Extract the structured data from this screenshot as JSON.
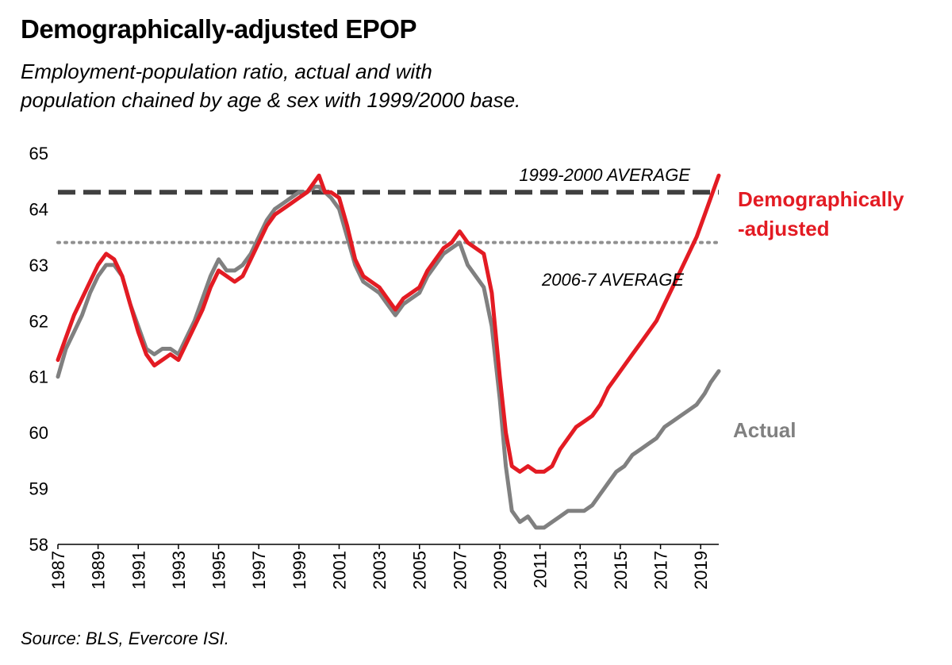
{
  "title": "Demographically-adjusted EPOP",
  "subtitle_lines": [
    "Employment-population ratio, actual and with",
    "population chained by age & sex with 1999/2000  base."
  ],
  "source": "Source: BLS, Evercore ISI.",
  "chart_data": {
    "type": "line",
    "title": "Demographically-adjusted EPOP",
    "xlabel": "",
    "ylabel": "",
    "xlim": [
      1987,
      2019.9
    ],
    "ylim": [
      58,
      65
    ],
    "yticks": [
      58,
      59,
      60,
      61,
      62,
      63,
      64,
      65
    ],
    "xticks": [
      "1987",
      "1989",
      "1991",
      "1993",
      "1995",
      "1997",
      "1999",
      "2001",
      "2003",
      "2005",
      "2007",
      "2009",
      "2011",
      "2013",
      "2015",
      "2017",
      "2019"
    ],
    "grid": false,
    "colors": {
      "adjusted": "#e31b23",
      "actual": "#808080",
      "avg_line": "#404040",
      "dotted_line": "#909090"
    },
    "reference_lines": [
      {
        "label": "1999-2000 AVERAGE",
        "value": 64.3,
        "style": "dashed"
      },
      {
        "label": "2006-7 AVERAGE",
        "value": 63.4,
        "style": "dotted"
      }
    ],
    "series": [
      {
        "name": "Demographically -adjusted",
        "label_lines": [
          "Demographically",
          "-adjusted"
        ],
        "x": [
          1987.0,
          1987.4,
          1987.8,
          1988.2,
          1988.6,
          1989.0,
          1989.4,
          1989.8,
          1990.2,
          1990.6,
          1991.0,
          1991.4,
          1991.8,
          1992.2,
          1992.6,
          1993.0,
          1993.4,
          1993.8,
          1994.2,
          1994.6,
          1995.0,
          1995.4,
          1995.8,
          1996.2,
          1996.6,
          1997.0,
          1997.4,
          1997.8,
          1998.2,
          1998.6,
          1999.0,
          1999.4,
          1999.8,
          2000.0,
          2000.3,
          2000.6,
          2001.0,
          2001.4,
          2001.8,
          2002.2,
          2002.6,
          2003.0,
          2003.4,
          2003.8,
          2004.2,
          2004.6,
          2005.0,
          2005.4,
          2005.8,
          2006.2,
          2006.6,
          2007.0,
          2007.4,
          2007.8,
          2008.2,
          2008.6,
          2009.0,
          2009.3,
          2009.6,
          2010.0,
          2010.4,
          2010.8,
          2011.2,
          2011.6,
          2012.0,
          2012.4,
          2012.8,
          2013.2,
          2013.6,
          2014.0,
          2014.4,
          2014.8,
          2015.2,
          2015.6,
          2016.0,
          2016.4,
          2016.8,
          2017.2,
          2017.6,
          2018.0,
          2018.4,
          2018.8,
          2019.2,
          2019.5,
          2019.9
        ],
        "y": [
          61.3,
          61.7,
          62.1,
          62.4,
          62.7,
          63.0,
          63.2,
          63.1,
          62.8,
          62.3,
          61.8,
          61.4,
          61.2,
          61.3,
          61.4,
          61.3,
          61.6,
          61.9,
          62.2,
          62.6,
          62.9,
          62.8,
          62.7,
          62.8,
          63.1,
          63.4,
          63.7,
          63.9,
          64.0,
          64.1,
          64.2,
          64.3,
          64.5,
          64.6,
          64.3,
          64.3,
          64.2,
          63.7,
          63.1,
          62.8,
          62.7,
          62.6,
          62.4,
          62.2,
          62.4,
          62.5,
          62.6,
          62.9,
          63.1,
          63.3,
          63.4,
          63.6,
          63.4,
          63.3,
          63.2,
          62.5,
          61.0,
          60.0,
          59.4,
          59.3,
          59.4,
          59.3,
          59.3,
          59.4,
          59.7,
          59.9,
          60.1,
          60.2,
          60.3,
          60.5,
          60.8,
          61.0,
          61.2,
          61.4,
          61.6,
          61.8,
          62.0,
          62.3,
          62.6,
          62.9,
          63.2,
          63.5,
          63.9,
          64.2,
          64.6
        ]
      },
      {
        "name": "Actual",
        "label_lines": [
          "Actual"
        ],
        "x": [
          1987.0,
          1987.4,
          1987.8,
          1988.2,
          1988.6,
          1989.0,
          1989.4,
          1989.8,
          1990.2,
          1990.6,
          1991.0,
          1991.4,
          1991.8,
          1992.2,
          1992.6,
          1993.0,
          1993.4,
          1993.8,
          1994.2,
          1994.6,
          1995.0,
          1995.4,
          1995.8,
          1996.2,
          1996.6,
          1997.0,
          1997.4,
          1997.8,
          1998.2,
          1998.6,
          1999.0,
          1999.4,
          1999.8,
          2000.0,
          2000.3,
          2000.6,
          2001.0,
          2001.4,
          2001.8,
          2002.2,
          2002.6,
          2003.0,
          2003.4,
          2003.8,
          2004.2,
          2004.6,
          2005.0,
          2005.4,
          2005.8,
          2006.2,
          2006.6,
          2007.0,
          2007.4,
          2007.8,
          2008.2,
          2008.6,
          2009.0,
          2009.3,
          2009.6,
          2010.0,
          2010.4,
          2010.8,
          2011.2,
          2011.6,
          2012.0,
          2012.4,
          2012.8,
          2013.2,
          2013.6,
          2014.0,
          2014.4,
          2014.8,
          2015.2,
          2015.6,
          2016.0,
          2016.4,
          2016.8,
          2017.2,
          2017.6,
          2018.0,
          2018.4,
          2018.8,
          2019.2,
          2019.5,
          2019.9
        ],
        "y": [
          61.0,
          61.5,
          61.8,
          62.1,
          62.5,
          62.8,
          63.0,
          63.0,
          62.8,
          62.3,
          61.9,
          61.5,
          61.4,
          61.5,
          61.5,
          61.4,
          61.7,
          62.0,
          62.4,
          62.8,
          63.1,
          62.9,
          62.9,
          63.0,
          63.2,
          63.5,
          63.8,
          64.0,
          64.1,
          64.2,
          64.3,
          64.3,
          64.4,
          64.4,
          64.3,
          64.2,
          64.0,
          63.5,
          63.0,
          62.7,
          62.6,
          62.5,
          62.3,
          62.1,
          62.3,
          62.4,
          62.5,
          62.8,
          63.0,
          63.2,
          63.3,
          63.4,
          63.0,
          62.8,
          62.6,
          61.9,
          60.6,
          59.4,
          58.6,
          58.4,
          58.5,
          58.3,
          58.3,
          58.4,
          58.5,
          58.6,
          58.6,
          58.6,
          58.7,
          58.9,
          59.1,
          59.3,
          59.4,
          59.6,
          59.7,
          59.8,
          59.9,
          60.1,
          60.2,
          60.3,
          60.4,
          60.5,
          60.7,
          60.9,
          61.1
        ]
      }
    ]
  }
}
